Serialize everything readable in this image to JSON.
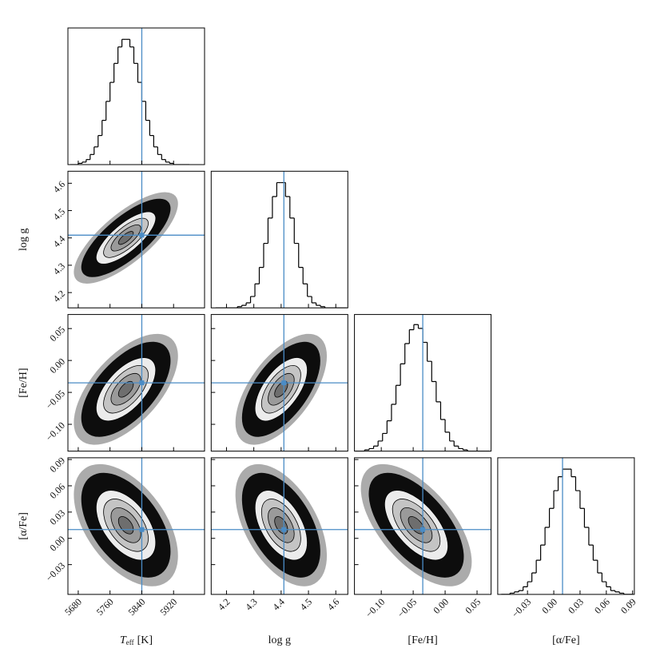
{
  "chart_data": {
    "type": "corner",
    "truth_color": "#4a8cc6",
    "hist_ylim": [
      0,
      108
    ],
    "variables": [
      {
        "label": "T",
        "subscript": "eff",
        "unit": "[K]",
        "lim": [
          5654,
          5998
        ],
        "ticks": [
          5680,
          5760,
          5840,
          5920
        ],
        "truth": 5840,
        "bins": [
          5660,
          5670,
          5680,
          5690,
          5700,
          5710,
          5720,
          5730,
          5740,
          5750,
          5760,
          5770,
          5780,
          5790,
          5800,
          5810,
          5820,
          5830,
          5840,
          5850,
          5860,
          5870,
          5880,
          5890,
          5900,
          5910,
          5920,
          5930,
          5940,
          5950,
          5960
        ],
        "counts": [
          0,
          0,
          1,
          2,
          4,
          8,
          14,
          23,
          35,
          50,
          65,
          80,
          93,
          99,
          99,
          93,
          80,
          65,
          50,
          35,
          23,
          14,
          8,
          4,
          2,
          1,
          0,
          0,
          0,
          0
        ]
      },
      {
        "label": "log g",
        "lim": [
          4.144,
          4.644
        ],
        "ticks": [
          4.2,
          4.3,
          4.4,
          4.5,
          4.6
        ],
        "truth": 4.41,
        "bins": [
          4.16,
          4.176,
          4.192,
          4.208,
          4.224,
          4.24,
          4.256,
          4.272,
          4.288,
          4.304,
          4.32,
          4.336,
          4.352,
          4.368,
          4.384,
          4.4,
          4.416,
          4.432,
          4.448,
          4.464,
          4.48,
          4.496,
          4.512,
          4.528,
          4.544,
          4.56,
          4.576,
          4.592,
          4.608,
          4.624,
          4.64
        ],
        "counts": [
          0,
          0,
          0,
          0,
          0,
          1,
          2,
          4,
          9,
          19,
          32,
          51,
          71,
          88,
          99,
          99,
          88,
          71,
          51,
          32,
          19,
          9,
          4,
          2,
          1,
          0,
          0,
          0,
          0,
          0
        ]
      },
      {
        "label": "[Fe/H]",
        "lim": [
          -0.142,
          0.072
        ],
        "ticks": [
          {
            "value": -0.1,
            "label": "−0.10"
          },
          {
            "value": -0.05,
            "label": "−0.05"
          },
          {
            "value": 0,
            "label": "0.00"
          },
          {
            "value": 0.05,
            "label": "0.05"
          }
        ],
        "truth": -0.035,
        "bins": [
          -0.14,
          -0.133,
          -0.126,
          -0.119,
          -0.112,
          -0.105,
          -0.098,
          -0.091,
          -0.084,
          -0.077,
          -0.07,
          -0.063,
          -0.056,
          -0.049,
          -0.042,
          -0.035,
          -0.028,
          -0.021,
          -0.014,
          -0.007,
          0,
          0.007,
          0.014,
          0.021,
          0.028,
          0.035,
          0.042,
          0.049,
          0.056,
          0.063,
          0.07
        ],
        "counts": [
          0,
          0,
          1,
          2,
          4,
          8,
          14,
          24,
          37,
          52,
          69,
          85,
          96,
          100,
          97,
          86,
          71,
          55,
          39,
          25,
          15,
          8,
          4,
          2,
          1,
          0,
          0,
          0,
          0,
          0
        ]
      },
      {
        "label": "[α/Fe]",
        "lim": [
          -0.064,
          0.092
        ],
        "ticks": [
          {
            "value": -0.03,
            "label": "−0.03"
          },
          {
            "value": 0,
            "label": "0.00"
          },
          {
            "value": 0.03,
            "label": "0.03"
          },
          {
            "value": 0.06,
            "label": "0.06"
          },
          {
            "value": 0.09,
            "label": "0.09"
          }
        ],
        "truth": 0.01,
        "bins": [
          -0.06,
          -0.055,
          -0.05,
          -0.045,
          -0.04,
          -0.035,
          -0.03,
          -0.025,
          -0.02,
          -0.015,
          -0.01,
          -0.005,
          0,
          0.005,
          0.01,
          0.015,
          0.02,
          0.025,
          0.03,
          0.035,
          0.04,
          0.045,
          0.05,
          0.055,
          0.06,
          0.065,
          0.07,
          0.075,
          0.08,
          0.085,
          0.09
        ],
        "counts": [
          0,
          0,
          1,
          2,
          3,
          6,
          10,
          17,
          27,
          39,
          53,
          68,
          82,
          93,
          99,
          99,
          93,
          82,
          68,
          53,
          39,
          27,
          17,
          10,
          6,
          3,
          2,
          1,
          0,
          0
        ]
      }
    ],
    "pairs": [
      {
        "x": 0,
        "y": 1,
        "correlation": 0.75
      },
      {
        "x": 0,
        "y": 2,
        "correlation": 0.6
      },
      {
        "x": 1,
        "y": 2,
        "correlation": 0.6
      },
      {
        "x": 0,
        "y": 3,
        "correlation": -0.5
      },
      {
        "x": 1,
        "y": 3,
        "correlation": -0.5
      },
      {
        "x": 2,
        "y": 3,
        "correlation": -0.6
      }
    ]
  }
}
